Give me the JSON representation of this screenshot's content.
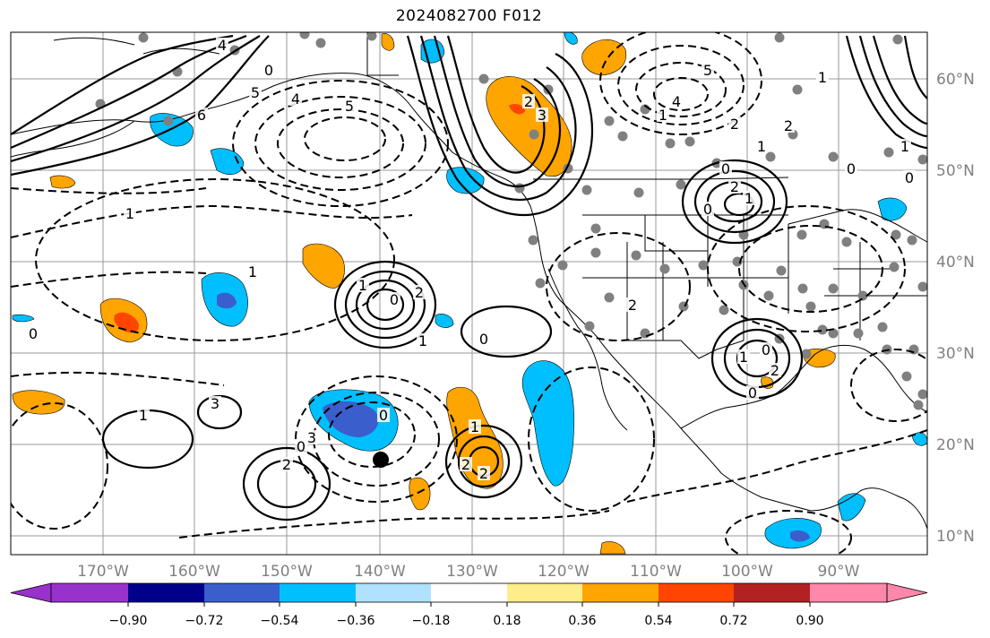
{
  "title": "2024082700 F012",
  "longitude_labels": [
    "170°W",
    "160°W",
    "150°W",
    "140°W",
    "130°W",
    "120°W",
    "110°W",
    "100°W",
    "90°W"
  ],
  "latitude_labels": [
    "60°N",
    "50°N",
    "40°N",
    "30°N",
    "20°N",
    "10°N"
  ],
  "colorbar": {
    "colors": [
      "#9932CC",
      "#00008B",
      "#3A5FCD",
      "#00BFFF",
      "#B0E2FF",
      "#FFFFFF",
      "#FFEC8B",
      "#FFA500",
      "#FF4500",
      "#B22222",
      "#FF88AA"
    ],
    "tick_labels": [
      "−0.90",
      "−0.72",
      "−0.54",
      "−0.36",
      "−0.18",
      "0.18",
      "0.36",
      "0.54",
      "0.72",
      "0.90"
    ],
    "extend": "both"
  },
  "contour_labels": [
    "4",
    "5",
    "6",
    "4",
    "5",
    "1",
    "0",
    "3",
    "2",
    "4",
    "5",
    "1",
    "0",
    "2",
    "1",
    "2",
    "0",
    "1",
    "0",
    "1",
    "1",
    "2",
    "0",
    "1",
    "0",
    "1",
    "2",
    "1",
    "0",
    "2",
    "0",
    "1",
    "3",
    "2",
    "0",
    "3",
    "0",
    "2",
    "1",
    "2",
    "0",
    "1",
    "2",
    "0"
  ],
  "storm_marker": "black-dot"
}
